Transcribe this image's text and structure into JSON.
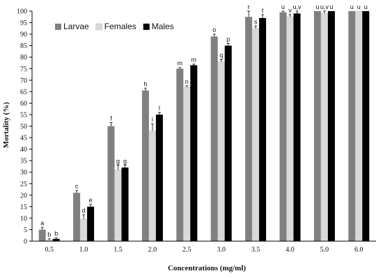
{
  "chart_data": {
    "type": "bar",
    "xlabel": "Concentrations (mg/ml)",
    "ylabel": "Mortality (%)",
    "ylim": [
      0,
      100
    ],
    "yticks": [
      0,
      5,
      10,
      15,
      20,
      25,
      30,
      35,
      40,
      45,
      50,
      55,
      60,
      65,
      70,
      75,
      80,
      85,
      90,
      95,
      100
    ],
    "grid": false,
    "legend_position": "top-left",
    "categories": [
      "0.5",
      "1.0",
      "1.5",
      "2.0",
      "2.5",
      "3.0",
      "3.5",
      "4.0",
      "5.0",
      "6.0"
    ],
    "series": [
      {
        "name": "Larvae",
        "color": "#808080",
        "values": [
          5,
          21,
          50,
          65.5,
          75,
          89,
          97.5,
          99.5,
          100,
          100
        ],
        "errors": [
          1,
          1,
          1.5,
          1,
          0.5,
          1,
          2.5,
          0.5,
          0,
          0
        ],
        "letters": [
          "a",
          "c",
          "f",
          "h",
          "m",
          "o",
          "r",
          "u",
          "u",
          "u"
        ]
      },
      {
        "name": "Females",
        "color": "#d9d9d9",
        "values": [
          0.5,
          9.5,
          31,
          48,
          67,
          78,
          92.5,
          97.5,
          99,
          100
        ],
        "errors": [
          0.5,
          2,
          2,
          3,
          0.5,
          1,
          1,
          1,
          1,
          0
        ],
        "letters": [
          "b",
          "d",
          "g",
          "i",
          "n",
          "q",
          "s",
          "v",
          "u,v",
          "u"
        ]
      },
      {
        "name": "Males",
        "color": "#000000",
        "values": [
          1,
          15,
          32,
          55,
          76.5,
          85,
          97,
          99,
          100,
          100
        ],
        "errors": [
          0.5,
          1,
          1,
          1,
          0.5,
          1,
          1.5,
          1,
          0,
          0
        ],
        "letters": [
          "b",
          "e",
          "g",
          "l",
          "m",
          "p",
          "t",
          "u,v",
          "u",
          "u"
        ]
      }
    ]
  }
}
